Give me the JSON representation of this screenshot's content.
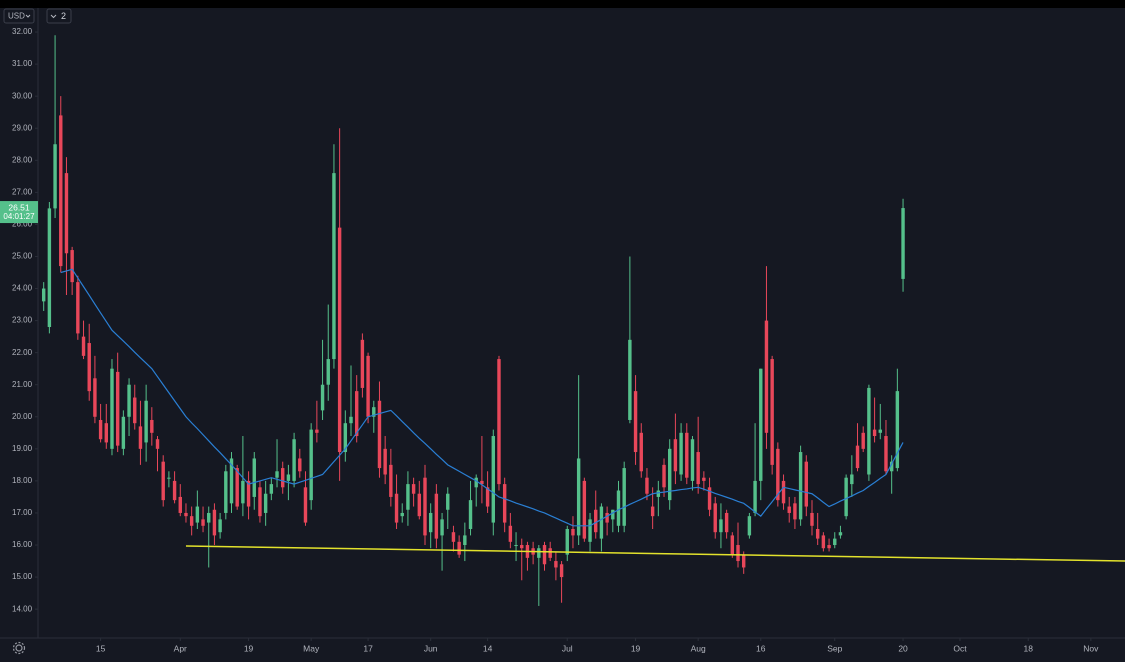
{
  "toolbar": {
    "currency": "USD",
    "count": "2"
  },
  "chart_data": {
    "type": "candlestick",
    "up_color": "#55c08b",
    "down_color": "#e8475a",
    "grid": false,
    "ohlc": [
      [
        23.6,
        24.2,
        23.3,
        24.0
      ],
      [
        22.8,
        26.7,
        22.6,
        26.5
      ],
      [
        26.5,
        31.9,
        26.2,
        28.5
      ],
      [
        29.4,
        30.0,
        24.5,
        24.7
      ],
      [
        27.6,
        28.1,
        23.8,
        25.1
      ],
      [
        25.2,
        25.3,
        23.8,
        24.2
      ],
      [
        24.2,
        24.4,
        22.4,
        22.6
      ],
      [
        22.5,
        23.0,
        21.8,
        21.9
      ],
      [
        22.3,
        22.9,
        20.5,
        20.8
      ],
      [
        21.2,
        21.9,
        19.8,
        20.0
      ],
      [
        19.9,
        20.4,
        19.2,
        19.3
      ],
      [
        19.8,
        20.4,
        19.0,
        19.2
      ],
      [
        19.0,
        21.8,
        18.8,
        21.5
      ],
      [
        21.4,
        22.0,
        18.9,
        19.1
      ],
      [
        19.0,
        20.2,
        18.8,
        20.0
      ],
      [
        20.0,
        21.2,
        19.4,
        21.0
      ],
      [
        20.6,
        21.0,
        19.6,
        19.8
      ],
      [
        19.7,
        20.5,
        18.5,
        19.0
      ],
      [
        19.2,
        21.0,
        18.6,
        20.5
      ],
      [
        19.9,
        20.3,
        19.1,
        19.5
      ],
      [
        19.3,
        19.4,
        18.3,
        19.0
      ],
      [
        18.6,
        18.8,
        17.2,
        17.4
      ],
      [
        18.1,
        18.3,
        17.8,
        18.1
      ],
      [
        18.0,
        18.3,
        17.3,
        17.4
      ],
      [
        17.5,
        17.9,
        16.9,
        17.0
      ],
      [
        17.0,
        17.3,
        16.7,
        16.9
      ],
      [
        16.9,
        17.2,
        16.3,
        16.6
      ],
      [
        16.7,
        17.7,
        16.5,
        17.2
      ],
      [
        16.8,
        17.2,
        16.4,
        16.6
      ],
      [
        16.7,
        17.2,
        15.3,
        17.0
      ],
      [
        17.1,
        17.3,
        16.0,
        16.3
      ],
      [
        16.4,
        17.0,
        16.2,
        16.8
      ],
      [
        17.0,
        18.5,
        16.8,
        18.3
      ],
      [
        17.3,
        18.9,
        17.0,
        18.7
      ],
      [
        18.4,
        18.5,
        17.1,
        17.2
      ],
      [
        17.3,
        19.4,
        16.9,
        18.0
      ],
      [
        18.0,
        18.3,
        16.8,
        17.2
      ],
      [
        17.5,
        18.9,
        17.1,
        18.7
      ],
      [
        17.8,
        18.0,
        16.7,
        16.9
      ],
      [
        17.0,
        18.0,
        16.6,
        17.6
      ],
      [
        17.6,
        18.1,
        17.4,
        17.9
      ],
      [
        18.1,
        19.3,
        17.8,
        18.3
      ],
      [
        18.4,
        18.6,
        17.6,
        17.8
      ],
      [
        18.0,
        18.5,
        17.4,
        18.2
      ],
      [
        18.0,
        19.5,
        17.8,
        19.3
      ],
      [
        18.7,
        19.0,
        18.1,
        18.3
      ],
      [
        17.8,
        18.3,
        16.6,
        16.7
      ],
      [
        17.4,
        19.8,
        17.1,
        19.6
      ],
      [
        19.6,
        20.5,
        19.2,
        19.5
      ],
      [
        20.2,
        22.4,
        19.9,
        21.0
      ],
      [
        21.0,
        23.5,
        20.5,
        21.8
      ],
      [
        21.8,
        28.5,
        21.5,
        27.6
      ],
      [
        25.9,
        29.0,
        18.0,
        18.9
      ],
      [
        18.9,
        20.2,
        18.6,
        19.8
      ],
      [
        19.8,
        21.6,
        19.4,
        20.0
      ],
      [
        20.8,
        21.3,
        19.2,
        19.4
      ],
      [
        22.4,
        22.6,
        20.6,
        20.9
      ],
      [
        21.9,
        22.0,
        19.8,
        20.0
      ],
      [
        20.0,
        20.5,
        19.5,
        20.3
      ],
      [
        20.5,
        21.1,
        18.1,
        18.4
      ],
      [
        19.0,
        19.4,
        17.9,
        18.2
      ],
      [
        18.5,
        19.0,
        17.2,
        17.5
      ],
      [
        17.6,
        18.2,
        16.5,
        16.7
      ],
      [
        16.9,
        17.3,
        16.7,
        17.0
      ],
      [
        17.1,
        18.3,
        16.6,
        17.9
      ],
      [
        17.9,
        18.1,
        17.2,
        17.6
      ],
      [
        17.6,
        18.0,
        16.8,
        16.9
      ],
      [
        18.1,
        18.5,
        16.0,
        16.3
      ],
      [
        16.4,
        17.3,
        15.9,
        17.0
      ],
      [
        17.6,
        17.9,
        15.9,
        16.2
      ],
      [
        16.3,
        17.0,
        15.2,
        16.8
      ],
      [
        17.1,
        17.8,
        16.5,
        17.6
      ],
      [
        16.4,
        16.6,
        15.8,
        16.1
      ],
      [
        16.1,
        16.3,
        15.6,
        15.7
      ],
      [
        16.0,
        16.7,
        15.5,
        16.3
      ],
      [
        16.5,
        18.0,
        16.3,
        17.4
      ],
      [
        17.8,
        18.2,
        17.2,
        18.1
      ],
      [
        18.0,
        19.4,
        17.3,
        17.9
      ],
      [
        17.8,
        18.3,
        17.0,
        17.2
      ],
      [
        16.7,
        19.6,
        16.3,
        19.4
      ],
      [
        21.8,
        21.9,
        17.7,
        17.9
      ],
      [
        17.9,
        18.1,
        16.4,
        16.7
      ],
      [
        16.6,
        17.0,
        15.9,
        16.1
      ],
      [
        16.0,
        16.4,
        15.5,
        16.0
      ],
      [
        16.0,
        16.2,
        14.9,
        15.9
      ],
      [
        16.0,
        16.1,
        15.2,
        15.6
      ],
      [
        15.9,
        16.1,
        15.4,
        15.7
      ],
      [
        15.6,
        16.0,
        14.1,
        15.9
      ],
      [
        16.0,
        16.1,
        15.2,
        15.4
      ],
      [
        15.9,
        16.1,
        15.5,
        15.6
      ],
      [
        15.5,
        15.8,
        14.9,
        15.3
      ],
      [
        15.4,
        15.5,
        14.2,
        15.0
      ],
      [
        15.7,
        16.6,
        15.5,
        16.5
      ],
      [
        16.5,
        16.9,
        15.9,
        16.3
      ],
      [
        16.3,
        21.3,
        16.0,
        18.7
      ],
      [
        18.0,
        18.1,
        16.1,
        16.2
      ],
      [
        16.1,
        17.0,
        15.8,
        16.8
      ],
      [
        17.1,
        17.7,
        16.2,
        16.4
      ],
      [
        16.2,
        17.3,
        15.8,
        17.2
      ],
      [
        17.0,
        17.2,
        16.3,
        16.7
      ],
      [
        16.8,
        17.1,
        16.4,
        17.1
      ],
      [
        16.6,
        18.0,
        16.4,
        17.7
      ],
      [
        16.6,
        18.6,
        16.4,
        18.4
      ],
      [
        19.9,
        25.0,
        19.8,
        22.4
      ],
      [
        20.8,
        21.3,
        18.5,
        18.9
      ],
      [
        19.5,
        19.8,
        18.1,
        18.3
      ],
      [
        18.1,
        18.4,
        17.4,
        17.6
      ],
      [
        17.2,
        17.8,
        16.5,
        16.9
      ],
      [
        17.5,
        18.0,
        16.9,
        17.7
      ],
      [
        18.5,
        18.7,
        17.5,
        17.8
      ],
      [
        17.4,
        19.3,
        17.1,
        19.0
      ],
      [
        19.3,
        20.1,
        17.9,
        18.3
      ],
      [
        18.2,
        19.8,
        18.0,
        19.5
      ],
      [
        19.5,
        19.8,
        17.9,
        18.1
      ],
      [
        18.0,
        19.4,
        17.7,
        19.3
      ],
      [
        18.9,
        20.0,
        17.6,
        17.9
      ],
      [
        18.1,
        18.3,
        17.7,
        18.0
      ],
      [
        17.8,
        18.1,
        16.9,
        17.1
      ],
      [
        17.3,
        17.5,
        16.2,
        16.4
      ],
      [
        16.4,
        17.3,
        15.9,
        16.8
      ],
      [
        17.0,
        17.1,
        16.2,
        16.4
      ],
      [
        16.3,
        16.4,
        15.6,
        15.7
      ],
      [
        16.0,
        16.7,
        15.3,
        15.5
      ],
      [
        15.7,
        15.8,
        15.1,
        15.3
      ],
      [
        16.3,
        17.0,
        16.2,
        16.9
      ],
      [
        17.0,
        19.8,
        16.9,
        18.0
      ],
      [
        18.0,
        21.5,
        17.4,
        21.5
      ],
      [
        23.0,
        24.7,
        19.0,
        19.5
      ],
      [
        21.8,
        21.9,
        18.2,
        18.5
      ],
      [
        19.0,
        19.2,
        17.2,
        17.4
      ],
      [
        18.0,
        18.2,
        17.1,
        17.3
      ],
      [
        17.2,
        17.5,
        16.7,
        17.0
      ],
      [
        17.3,
        17.5,
        16.5,
        16.8
      ],
      [
        16.8,
        19.1,
        16.6,
        18.9
      ],
      [
        18.6,
        18.8,
        16.9,
        17.2
      ],
      [
        17.0,
        17.4,
        16.3,
        16.6
      ],
      [
        16.5,
        17.0,
        16.0,
        16.2
      ],
      [
        16.3,
        16.4,
        15.8,
        15.9
      ],
      [
        16.0,
        16.2,
        15.8,
        15.9
      ],
      [
        16.0,
        16.4,
        15.9,
        16.2
      ],
      [
        16.3,
        16.6,
        16.2,
        16.4
      ],
      [
        16.9,
        18.2,
        16.8,
        18.1
      ],
      [
        17.9,
        18.8,
        17.5,
        18.2
      ],
      [
        19.1,
        19.8,
        18.3,
        18.4
      ],
      [
        19.5,
        19.7,
        18.9,
        19.0
      ],
      [
        18.2,
        21.0,
        18.0,
        20.9
      ],
      [
        19.6,
        20.6,
        19.2,
        19.4
      ],
      [
        19.5,
        20.4,
        19.3,
        19.6
      ],
      [
        19.4,
        19.9,
        18.2,
        18.3
      ],
      [
        18.3,
        18.8,
        17.6,
        18.6
      ],
      [
        18.4,
        21.5,
        18.3,
        20.8
      ],
      [
        24.3,
        26.8,
        23.9,
        26.51
      ]
    ],
    "ma": {
      "color": "#2a7fd4",
      "values": [
        null,
        null,
        null,
        24.5,
        24.55,
        24.6,
        24.33,
        24.06,
        23.79,
        23.51,
        23.24,
        22.97,
        22.7,
        22.53,
        22.36,
        22.19,
        22.01,
        21.84,
        21.67,
        21.5,
        21.25,
        21.0,
        20.75,
        20.5,
        20.25,
        20.0,
        19.81,
        19.63,
        19.44,
        19.25,
        19.06,
        18.88,
        18.69,
        18.5,
        18.3,
        18.1,
        17.9,
        17.95,
        18.0,
        18.05,
        18.1,
        18.05,
        18.0,
        17.95,
        17.9,
        17.96,
        18.02,
        18.08,
        18.14,
        18.2,
        18.4,
        18.6,
        18.8,
        19.0,
        19.25,
        19.5,
        19.75,
        20.0,
        20.05,
        20.1,
        20.15,
        20.2,
        20.03,
        19.85,
        19.68,
        19.5,
        19.33,
        19.17,
        19.0,
        18.83,
        18.67,
        18.5,
        18.4,
        18.3,
        18.2,
        18.1,
        18.0,
        17.88,
        17.75,
        17.63,
        17.5,
        17.44,
        17.38,
        17.31,
        17.25,
        17.19,
        17.13,
        17.06,
        17.0,
        16.92,
        16.84,
        16.76,
        16.68,
        16.6,
        16.6,
        16.6,
        16.6,
        16.7,
        16.8,
        16.9,
        17.0,
        17.1,
        17.18,
        17.27,
        17.35,
        17.43,
        17.52,
        17.6,
        17.63,
        17.65,
        17.68,
        17.7,
        17.73,
        17.75,
        17.78,
        17.8,
        17.74,
        17.68,
        17.61,
        17.55,
        17.49,
        17.43,
        17.36,
        17.3,
        17.17,
        17.03,
        16.9,
        17.13,
        17.35,
        17.58,
        17.8,
        17.76,
        17.72,
        17.68,
        17.64,
        17.6,
        17.47,
        17.33,
        17.2,
        17.28,
        17.37,
        17.45,
        17.53,
        17.62,
        17.7,
        17.83,
        17.95,
        18.08,
        18.2,
        18.53,
        18.87,
        19.2
      ]
    },
    "trendline": {
      "color": "#e3e22c",
      "x": [
        25,
        190
      ],
      "y": [
        15.97,
        15.5
      ]
    },
    "last_price": 26.51,
    "countdown": "04:01:27",
    "xlim": [
      -1,
      190
    ],
    "ylim": [
      13.1,
      32.75
    ],
    "xticks": [
      {
        "value": 10,
        "label": "15"
      },
      {
        "value": 24,
        "label": "Apr"
      },
      {
        "value": 36,
        "label": "19"
      },
      {
        "value": 47,
        "label": "May"
      },
      {
        "value": 57,
        "label": "17"
      },
      {
        "value": 68,
        "label": "Jun"
      },
      {
        "value": 78,
        "label": "14"
      },
      {
        "value": 92,
        "label": "Jul"
      },
      {
        "value": 104,
        "label": "19"
      },
      {
        "value": 115,
        "label": "Aug"
      },
      {
        "value": 126,
        "label": "16"
      },
      {
        "value": 139,
        "label": "Sep"
      },
      {
        "value": 151,
        "label": "20"
      },
      {
        "value": 161,
        "label": "Oct"
      },
      {
        "value": 173,
        "label": "18"
      },
      {
        "value": 184,
        "label": "Nov"
      }
    ],
    "yticks": [
      {
        "value": 14,
        "label": "14.00"
      },
      {
        "value": 15,
        "label": "15.00"
      },
      {
        "value": 16,
        "label": "16.00"
      },
      {
        "value": 17,
        "label": "17.00"
      },
      {
        "value": 18,
        "label": "18.00"
      },
      {
        "value": 19,
        "label": "19.00"
      },
      {
        "value": 20,
        "label": "20.00"
      },
      {
        "value": 21,
        "label": "21.00"
      },
      {
        "value": 22,
        "label": "22.00"
      },
      {
        "value": 23,
        "label": "23.00"
      },
      {
        "value": 24,
        "label": "24.00"
      },
      {
        "value": 25,
        "label": "25.00"
      },
      {
        "value": 26,
        "label": "26.00"
      },
      {
        "value": 27,
        "label": "27.00"
      },
      {
        "value": 28,
        "label": "28.00"
      },
      {
        "value": 29,
        "label": "29.00"
      },
      {
        "value": 30,
        "label": "30.00"
      },
      {
        "value": 31,
        "label": "31.00"
      },
      {
        "value": 32,
        "label": "32.00"
      }
    ]
  }
}
